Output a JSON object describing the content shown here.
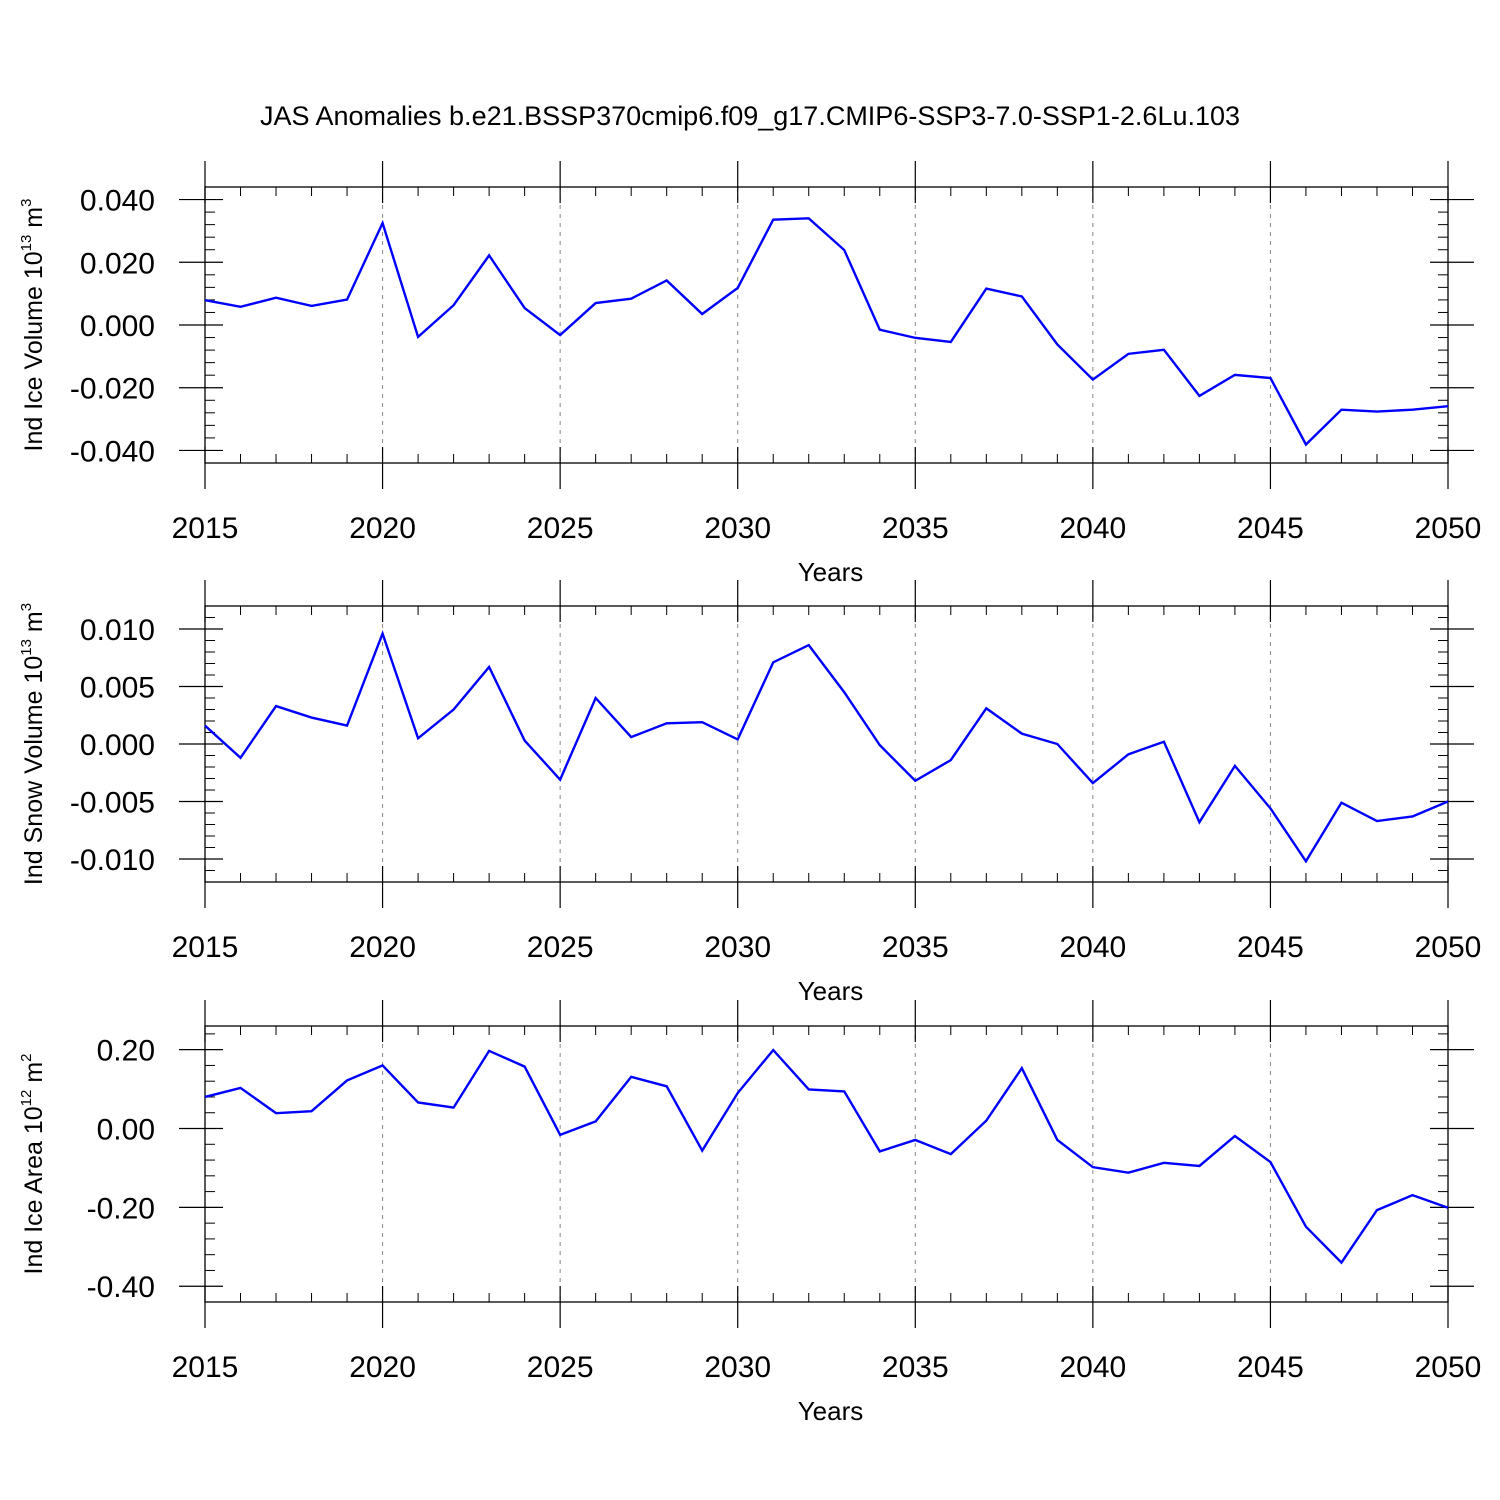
{
  "title": "JAS Anomalies b.e21.BSSP370cmip6.f09_g17.CMIP6-SSP3-7.0-SSP1-2.6Lu.103",
  "colors": {
    "series": "#0000ff",
    "axis": "#000000",
    "grid": "#888888"
  },
  "chart_data": [
    {
      "type": "line",
      "title": "JAS Anomalies b.e21.BSSP370cmip6.f09_g17.CMIP6-SSP3-7.0-SSP1-2.6Lu.103",
      "xlabel": "Years",
      "ylabel": {
        "text": "Ind Ice Volume 10",
        "exp": "13",
        "unit": " m",
        "unit_exp": "3"
      },
      "xlim": [
        2015,
        2050
      ],
      "ylim": [
        -0.044,
        0.044
      ],
      "yticks": [
        -0.04,
        -0.02,
        0.0,
        0.02,
        0.04
      ],
      "ytick_labels": [
        "-0.040",
        "-0.020",
        "0.000",
        "0.020",
        "0.040"
      ],
      "xticks": [
        2015,
        2020,
        2025,
        2030,
        2035,
        2040,
        2045,
        2050
      ],
      "xtick_labels": [
        "2015",
        "2020",
        "2025",
        "2030",
        "2035",
        "2040",
        "2045",
        "2050"
      ],
      "x": [
        2015,
        2016,
        2017,
        2018,
        2019,
        2020,
        2021,
        2022,
        2023,
        2024,
        2025,
        2026,
        2027,
        2028,
        2029,
        2030,
        2031,
        2032,
        2033,
        2034,
        2035,
        2036,
        2037,
        2038,
        2039,
        2040,
        2041,
        2042,
        2043,
        2044,
        2045,
        2046,
        2047,
        2048,
        2049,
        2050
      ],
      "values": [
        0.0079,
        0.0058,
        0.0087,
        0.0061,
        0.0081,
        0.0325,
        -0.0038,
        0.0063,
        0.0222,
        0.0054,
        -0.0032,
        0.007,
        0.0084,
        0.0142,
        0.0035,
        0.0118,
        0.0336,
        0.034,
        0.0239,
        -0.0015,
        -0.0041,
        -0.0054,
        0.0116,
        0.0091,
        -0.0062,
        -0.0174,
        -0.0092,
        -0.0079,
        -0.0226,
        -0.0159,
        -0.0169,
        -0.0381,
        -0.027,
        -0.0276,
        -0.027,
        -0.0259
      ]
    },
    {
      "type": "line",
      "xlabel": "Years",
      "ylabel": {
        "text": "Ind Snow Volume 10",
        "exp": "13",
        "unit": " m",
        "unit_exp": "3"
      },
      "xlim": [
        2015,
        2050
      ],
      "ylim": [
        -0.012,
        0.012
      ],
      "yticks": [
        -0.01,
        -0.005,
        0.0,
        0.005,
        0.01
      ],
      "ytick_labels": [
        "-0.010",
        "-0.005",
        "0.000",
        "0.005",
        "0.010"
      ],
      "xticks": [
        2015,
        2020,
        2025,
        2030,
        2035,
        2040,
        2045,
        2050
      ],
      "xtick_labels": [
        "2015",
        "2020",
        "2025",
        "2030",
        "2035",
        "2040",
        "2045",
        "2050"
      ],
      "x": [
        2015,
        2016,
        2017,
        2018,
        2019,
        2020,
        2021,
        2022,
        2023,
        2024,
        2025,
        2026,
        2027,
        2028,
        2029,
        2030,
        2031,
        2032,
        2033,
        2034,
        2035,
        2036,
        2037,
        2038,
        2039,
        2040,
        2041,
        2042,
        2043,
        2044,
        2045,
        2046,
        2047,
        2048,
        2049,
        2050
      ],
      "values": [
        0.0016,
        -0.0012,
        0.0033,
        0.0023,
        0.0016,
        0.0096,
        0.0005,
        0.003,
        0.0067,
        0.0003,
        -0.0031,
        0.004,
        0.0006,
        0.0018,
        0.0019,
        0.0004,
        0.0071,
        0.0086,
        0.0045,
        -0.0001,
        -0.0032,
        -0.0014,
        0.0031,
        0.0009,
        0.0,
        -0.0034,
        -0.0009,
        0.0002,
        -0.0068,
        -0.0019,
        -0.0056,
        -0.0102,
        -0.0051,
        -0.0067,
        -0.0063,
        -0.005
      ]
    },
    {
      "type": "line",
      "xlabel": "Years",
      "ylabel": {
        "text": "Ind Ice Area 10",
        "exp": "12",
        "unit": " m",
        "unit_exp": "2"
      },
      "xlim": [
        2015,
        2050
      ],
      "ylim": [
        -0.44,
        0.26
      ],
      "yticks": [
        -0.4,
        -0.2,
        0.0,
        0.2
      ],
      "ytick_labels": [
        "-0.40",
        "-0.20",
        "0.00",
        "0.20"
      ],
      "xticks": [
        2015,
        2020,
        2025,
        2030,
        2035,
        2040,
        2045,
        2050
      ],
      "xtick_labels": [
        "2015",
        "2020",
        "2025",
        "2030",
        "2035",
        "2040",
        "2045",
        "2050"
      ],
      "x": [
        2015,
        2016,
        2017,
        2018,
        2019,
        2020,
        2021,
        2022,
        2023,
        2024,
        2025,
        2026,
        2027,
        2028,
        2029,
        2030,
        2031,
        2032,
        2033,
        2034,
        2035,
        2036,
        2037,
        2038,
        2039,
        2040,
        2041,
        2042,
        2043,
        2044,
        2045,
        2046,
        2047,
        2048,
        2049,
        2050
      ],
      "values": [
        0.08,
        0.103,
        0.039,
        0.044,
        0.122,
        0.16,
        0.066,
        0.053,
        0.197,
        0.157,
        -0.016,
        0.018,
        0.131,
        0.107,
        -0.056,
        0.09,
        0.199,
        0.099,
        0.094,
        -0.058,
        -0.029,
        -0.065,
        0.02,
        0.153,
        -0.029,
        -0.098,
        -0.112,
        -0.087,
        -0.095,
        -0.019,
        -0.085,
        -0.249,
        -0.34,
        -0.207,
        -0.169,
        -0.201
      ]
    }
  ]
}
